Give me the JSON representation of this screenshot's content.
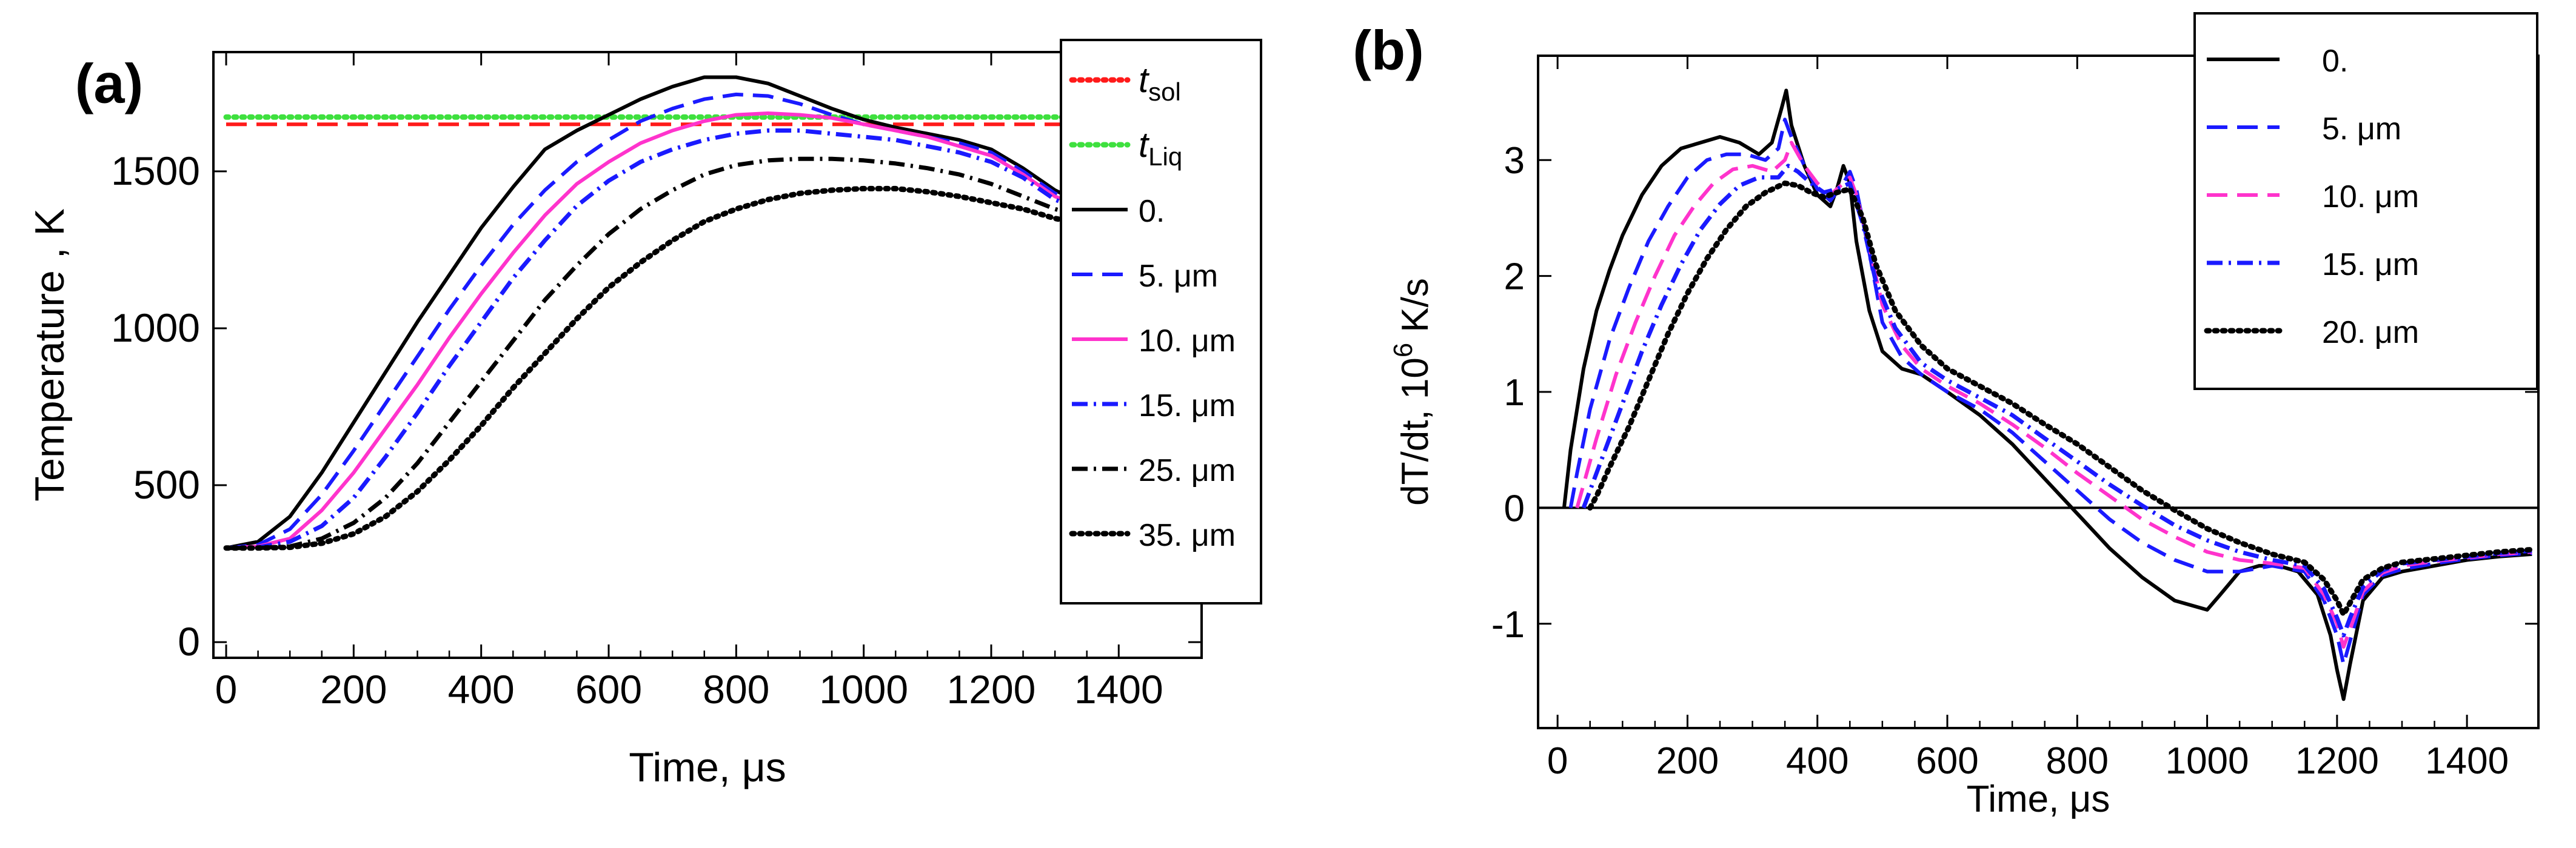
{
  "chart_data": [
    {
      "panel_label": "(a)",
      "type": "line",
      "xlabel": "Time, μs",
      "ylabel": "Temperature , K",
      "xlim": [
        -20,
        1530
      ],
      "ylim": [
        -50,
        1880
      ],
      "xticks": [
        0,
        200,
        400,
        600,
        800,
        1000,
        1200,
        1400
      ],
      "yticks": [
        0,
        500,
        1000,
        1500
      ],
      "legend_position": "right, overlapping plot frame",
      "colors": {
        "red": "#ff1a1a",
        "green": "#3ee03e",
        "black": "#000000",
        "blue": "#1a1aff",
        "magenta": "#ff33cc"
      },
      "series": [
        {
          "name": "t_sol",
          "label_main": "t",
          "label_sub": "sol",
          "color": "#ff1a1a",
          "dash": "dashed",
          "legend_dash": "dotted",
          "x": [
            0,
            1320
          ],
          "y": [
            1650,
            1650
          ]
        },
        {
          "name": "t_Liq",
          "label_main": "t",
          "label_sub": "Liq",
          "color": "#3ee03e",
          "dash": "dotted",
          "legend_dash": "dotted",
          "x": [
            0,
            1320
          ],
          "y": [
            1673,
            1673
          ]
        },
        {
          "name": "0.",
          "label": "0.",
          "color": "#000000",
          "dash": "solid",
          "x": [
            0,
            50,
            100,
            150,
            200,
            250,
            300,
            350,
            400,
            450,
            500,
            550,
            600,
            650,
            700,
            750,
            800,
            850,
            900,
            950,
            1000,
            1050,
            1100,
            1150,
            1200,
            1250,
            1300,
            1350
          ],
          "y": [
            300,
            320,
            400,
            540,
            700,
            860,
            1020,
            1170,
            1320,
            1450,
            1570,
            1630,
            1680,
            1730,
            1770,
            1800,
            1800,
            1780,
            1740,
            1700,
            1665,
            1640,
            1620,
            1600,
            1570,
            1510,
            1440,
            1390
          ]
        },
        {
          "name": "5. μm",
          "label": "5. μm",
          "color": "#1a1aff",
          "dash": "dashed",
          "x": [
            0,
            50,
            100,
            150,
            200,
            250,
            300,
            350,
            400,
            450,
            500,
            550,
            600,
            650,
            700,
            750,
            800,
            850,
            900,
            950,
            1000,
            1050,
            1100,
            1150,
            1200,
            1250,
            1300,
            1350
          ],
          "y": [
            300,
            310,
            360,
            470,
            610,
            760,
            910,
            1060,
            1200,
            1330,
            1440,
            1530,
            1600,
            1660,
            1700,
            1730,
            1745,
            1740,
            1715,
            1680,
            1650,
            1630,
            1610,
            1590,
            1560,
            1500,
            1430,
            1390
          ]
        },
        {
          "name": "10. μm",
          "label": "10. μm",
          "color": "#ff33cc",
          "dash": "solid",
          "x": [
            0,
            50,
            100,
            150,
            200,
            250,
            300,
            350,
            400,
            450,
            500,
            550,
            600,
            650,
            700,
            750,
            800,
            850,
            900,
            950,
            1000,
            1050,
            1100,
            1150,
            1200,
            1250,
            1300,
            1350
          ],
          "y": [
            300,
            305,
            330,
            420,
            540,
            680,
            820,
            970,
            1110,
            1240,
            1360,
            1460,
            1530,
            1590,
            1630,
            1660,
            1680,
            1685,
            1680,
            1670,
            1650,
            1630,
            1610,
            1580,
            1550,
            1490,
            1420,
            1380
          ]
        },
        {
          "name": "15. μm",
          "label": "15. μm",
          "color": "#1a1aff",
          "dash": "dashdot",
          "x": [
            0,
            50,
            100,
            150,
            200,
            250,
            300,
            350,
            400,
            450,
            500,
            550,
            600,
            650,
            700,
            750,
            800,
            850,
            900,
            950,
            1000,
            1050,
            1100,
            1150,
            1200,
            1250,
            1300,
            1350
          ],
          "y": [
            300,
            302,
            320,
            370,
            460,
            590,
            730,
            880,
            1020,
            1160,
            1280,
            1390,
            1470,
            1530,
            1570,
            1600,
            1620,
            1630,
            1630,
            1620,
            1610,
            1600,
            1580,
            1560,
            1530,
            1480,
            1410,
            1370
          ]
        },
        {
          "name": "25. μm",
          "label": "25. μm",
          "color": "#000000",
          "dash": "dashdot",
          "x": [
            0,
            50,
            100,
            150,
            200,
            250,
            300,
            350,
            400,
            450,
            500,
            550,
            600,
            650,
            700,
            750,
            800,
            850,
            900,
            950,
            1000,
            1050,
            1100,
            1150,
            1200,
            1250,
            1300,
            1350
          ],
          "y": [
            300,
            300,
            305,
            330,
            380,
            460,
            570,
            700,
            830,
            960,
            1090,
            1200,
            1300,
            1380,
            1440,
            1490,
            1520,
            1535,
            1540,
            1540,
            1535,
            1525,
            1510,
            1490,
            1460,
            1420,
            1380,
            1350
          ]
        },
        {
          "name": "35. μm",
          "label": "35. μm",
          "color": "#000000",
          "dash": "dotted",
          "x": [
            0,
            50,
            100,
            150,
            200,
            250,
            300,
            350,
            400,
            450,
            500,
            550,
            600,
            650,
            700,
            750,
            800,
            850,
            900,
            950,
            1000,
            1050,
            1100,
            1150,
            1200,
            1250,
            1300,
            1350
          ],
          "y": [
            300,
            300,
            302,
            315,
            345,
            400,
            480,
            580,
            690,
            810,
            920,
            1030,
            1130,
            1210,
            1280,
            1340,
            1380,
            1410,
            1430,
            1440,
            1445,
            1445,
            1435,
            1420,
            1400,
            1380,
            1350,
            1330
          ]
        }
      ]
    },
    {
      "panel_label": "(b)",
      "type": "line",
      "xlabel": "Time, μs",
      "ylabel_main": "dT/dt, 10",
      "ylabel_sup": "6",
      "ylabel_unit": " K/s",
      "xlim": [
        -30,
        1510
      ],
      "ylim": [
        -1.9,
        3.9
      ],
      "xticks": [
        0,
        200,
        400,
        600,
        800,
        1000,
        1200,
        1400
      ],
      "yticks": [
        -1,
        0,
        1,
        2,
        3
      ],
      "zero_line": true,
      "legend_position": "top, inside plot frame",
      "series": [
        {
          "name": "0.",
          "label": "0.",
          "color": "#000000",
          "dash": "solid",
          "x": [
            10,
            20,
            40,
            60,
            80,
            100,
            130,
            160,
            190,
            220,
            250,
            280,
            310,
            330,
            345,
            352,
            360,
            380,
            400,
            420,
            430,
            440,
            450,
            460,
            480,
            500,
            530,
            560,
            600,
            650,
            700,
            750,
            800,
            850,
            900,
            950,
            1000,
            1020,
            1050,
            1080,
            1110,
            1140,
            1170,
            1190,
            1200,
            1210,
            1220,
            1240,
            1270,
            1300,
            1350,
            1400,
            1450,
            1500
          ],
          "y": [
            0.0,
            0.5,
            1.2,
            1.7,
            2.05,
            2.35,
            2.7,
            2.95,
            3.1,
            3.15,
            3.2,
            3.15,
            3.05,
            3.15,
            3.45,
            3.6,
            3.3,
            2.95,
            2.7,
            2.6,
            2.75,
            2.95,
            2.8,
            2.3,
            1.7,
            1.35,
            1.2,
            1.15,
            1.0,
            0.8,
            0.55,
            0.25,
            -0.05,
            -0.35,
            -0.6,
            -0.8,
            -0.88,
            -0.75,
            -0.55,
            -0.5,
            -0.5,
            -0.55,
            -0.75,
            -1.1,
            -1.4,
            -1.65,
            -1.35,
            -0.8,
            -0.6,
            -0.55,
            -0.5,
            -0.45,
            -0.42,
            -0.4
          ]
        },
        {
          "name": "5. μm",
          "label": "5. μm",
          "color": "#1a1aff",
          "dash": "dashed",
          "x": [
            20,
            30,
            50,
            80,
            110,
            140,
            170,
            200,
            230,
            260,
            290,
            320,
            340,
            350,
            360,
            380,
            400,
            420,
            440,
            450,
            460,
            480,
            500,
            530,
            560,
            600,
            650,
            700,
            750,
            800,
            850,
            900,
            950,
            1000,
            1050,
            1100,
            1150,
            1180,
            1200,
            1210,
            1220,
            1240,
            1270,
            1300,
            1350,
            1400,
            1450,
            1500
          ],
          "y": [
            0.0,
            0.3,
            0.85,
            1.45,
            1.9,
            2.3,
            2.6,
            2.85,
            3.0,
            3.05,
            3.05,
            3.0,
            3.1,
            3.35,
            3.2,
            2.95,
            2.75,
            2.65,
            2.8,
            2.9,
            2.75,
            2.2,
            1.6,
            1.3,
            1.15,
            1.0,
            0.85,
            0.65,
            0.4,
            0.15,
            -0.1,
            -0.3,
            -0.45,
            -0.55,
            -0.55,
            -0.5,
            -0.55,
            -0.8,
            -1.1,
            -1.35,
            -1.15,
            -0.75,
            -0.58,
            -0.53,
            -0.48,
            -0.44,
            -0.41,
            -0.39
          ]
        },
        {
          "name": "10. μm",
          "label": "10. μm",
          "color": "#ff33cc",
          "dash": "dashed",
          "x": [
            30,
            40,
            60,
            90,
            120,
            150,
            180,
            210,
            240,
            270,
            300,
            330,
            350,
            360,
            380,
            400,
            420,
            440,
            450,
            460,
            480,
            500,
            530,
            560,
            600,
            650,
            700,
            750,
            800,
            850,
            900,
            950,
            1000,
            1050,
            1100,
            1150,
            1180,
            1200,
            1210,
            1220,
            1240,
            1270,
            1300,
            1350,
            1400,
            1450,
            1500
          ],
          "y": [
            0.0,
            0.2,
            0.6,
            1.15,
            1.6,
            2.0,
            2.35,
            2.6,
            2.8,
            2.92,
            2.95,
            2.9,
            3.0,
            3.15,
            2.95,
            2.8,
            2.7,
            2.8,
            2.85,
            2.7,
            2.25,
            1.75,
            1.4,
            1.2,
            1.05,
            0.9,
            0.72,
            0.52,
            0.3,
            0.1,
            -0.1,
            -0.25,
            -0.38,
            -0.45,
            -0.48,
            -0.52,
            -0.75,
            -1.0,
            -1.2,
            -1.05,
            -0.72,
            -0.56,
            -0.5,
            -0.46,
            -0.43,
            -0.4,
            -0.38
          ]
        },
        {
          "name": "15. μm",
          "label": "15. μm",
          "color": "#1a1aff",
          "dash": "dashdot",
          "x": [
            40,
            50,
            70,
            100,
            130,
            160,
            190,
            220,
            250,
            280,
            310,
            340,
            355,
            370,
            390,
            410,
            430,
            450,
            470,
            490,
            520,
            560,
            600,
            650,
            700,
            750,
            800,
            850,
            900,
            950,
            1000,
            1050,
            1100,
            1150,
            1180,
            1200,
            1210,
            1220,
            1240,
            1270,
            1300,
            1350,
            1400,
            1450,
            1500
          ],
          "y": [
            0.0,
            0.15,
            0.45,
            0.9,
            1.35,
            1.75,
            2.1,
            2.4,
            2.62,
            2.78,
            2.85,
            2.85,
            2.95,
            2.9,
            2.8,
            2.72,
            2.75,
            2.8,
            2.45,
            1.95,
            1.55,
            1.25,
            1.1,
            0.95,
            0.8,
            0.6,
            0.4,
            0.2,
            0.02,
            -0.15,
            -0.28,
            -0.38,
            -0.45,
            -0.5,
            -0.7,
            -0.95,
            -1.1,
            -0.95,
            -0.68,
            -0.54,
            -0.48,
            -0.45,
            -0.42,
            -0.39,
            -0.37
          ]
        },
        {
          "name": "20. μm",
          "label": "20. μm",
          "color": "#000000",
          "dash": "dotted",
          "x": [
            50,
            60,
            80,
            110,
            140,
            170,
            200,
            230,
            260,
            290,
            320,
            350,
            370,
            390,
            410,
            430,
            450,
            470,
            490,
            520,
            560,
            600,
            650,
            700,
            750,
            800,
            850,
            900,
            950,
            1000,
            1050,
            1100,
            1150,
            1180,
            1200,
            1210,
            1220,
            1240,
            1270,
            1300,
            1350,
            1400,
            1450,
            1500
          ],
          "y": [
            0.0,
            0.1,
            0.35,
            0.7,
            1.1,
            1.5,
            1.85,
            2.15,
            2.4,
            2.6,
            2.72,
            2.8,
            2.78,
            2.72,
            2.68,
            2.72,
            2.75,
            2.5,
            2.1,
            1.7,
            1.4,
            1.2,
            1.05,
            0.9,
            0.72,
            0.55,
            0.35,
            0.15,
            -0.02,
            -0.18,
            -0.3,
            -0.4,
            -0.47,
            -0.62,
            -0.8,
            -0.92,
            -0.82,
            -0.62,
            -0.52,
            -0.47,
            -0.44,
            -0.41,
            -0.38,
            -0.36
          ]
        }
      ]
    }
  ]
}
